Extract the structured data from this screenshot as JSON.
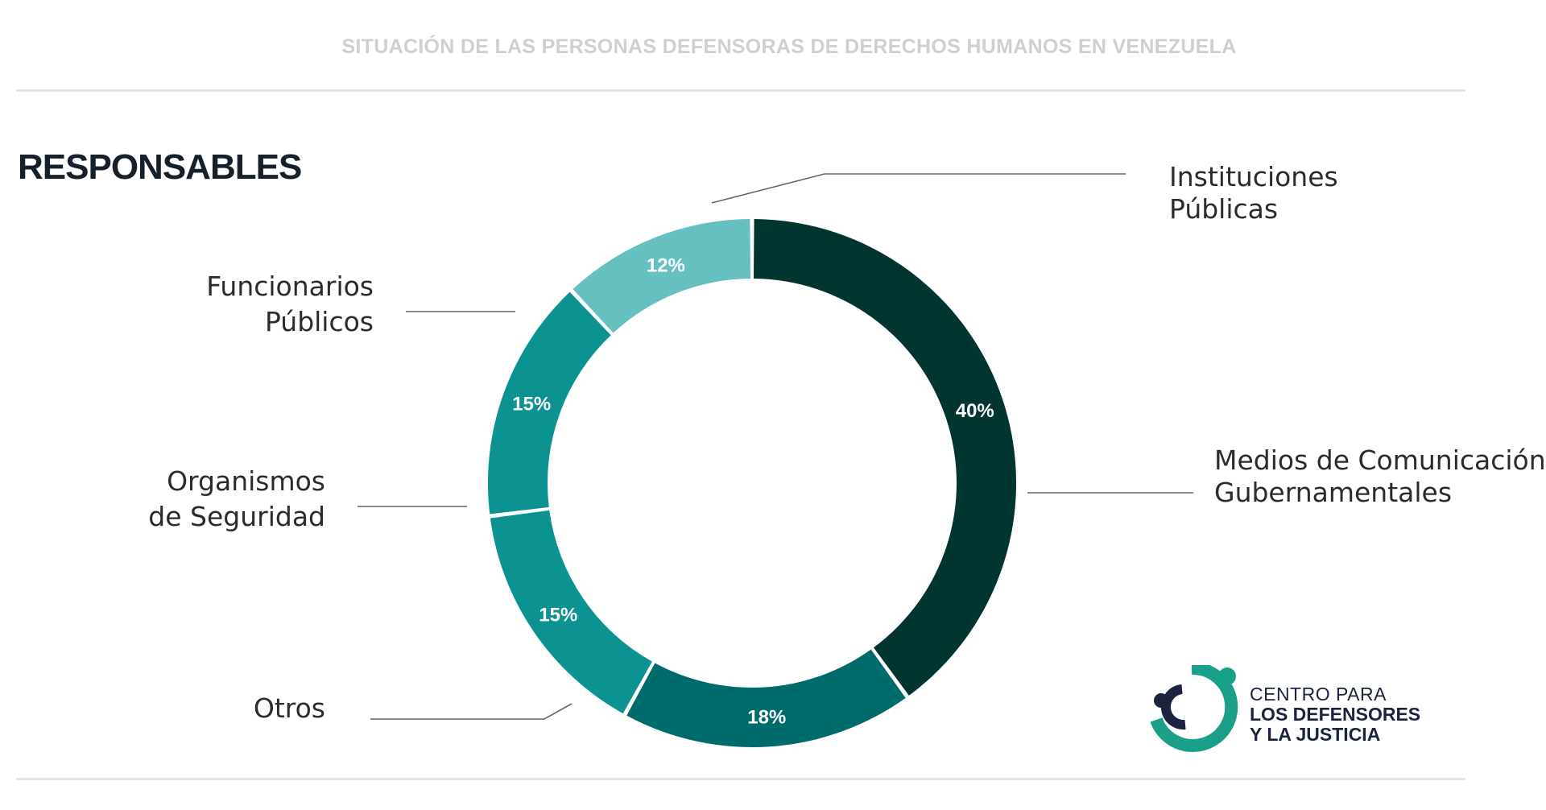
{
  "header": {
    "title": "SITUACIÓN DE LAS PERSONAS DEFENSORAS DE DERECHOS HUMANOS EN VENEZUELA"
  },
  "section": {
    "title": "RESPONSABLES"
  },
  "chart_data": {
    "type": "pie",
    "title": "RESPONSABLES",
    "variant": "donut",
    "start": "12 o'clock",
    "direction": "clockwise",
    "slices": [
      {
        "label_lines": [
          "Medios de Comunicación",
          "Gubernamentales"
        ],
        "value": 40,
        "value_label": "40%",
        "color": "#003530"
      },
      {
        "label_lines": [
          "Otros"
        ],
        "value": 18,
        "value_label": "18%",
        "color": "#006b6b"
      },
      {
        "label_lines": [
          "Organismos",
          "de Seguridad"
        ],
        "value": 15,
        "value_label": "15%",
        "color": "#0c9290"
      },
      {
        "label_lines": [
          "Funcionarios",
          "Públicos"
        ],
        "value": 15,
        "value_label": "15%",
        "color": "#0c9290"
      },
      {
        "label_lines": [
          "Instituciones",
          "Públicas"
        ],
        "value": 12,
        "value_label": "12%",
        "color": "#66c0bf"
      }
    ]
  },
  "logo": {
    "line1": "CENTRO PARA",
    "line2": "LOS DEFENSORES",
    "line3": "Y LA JUSTICIA",
    "colors": {
      "dark": "#1b2340",
      "green": "#1aa089"
    }
  }
}
